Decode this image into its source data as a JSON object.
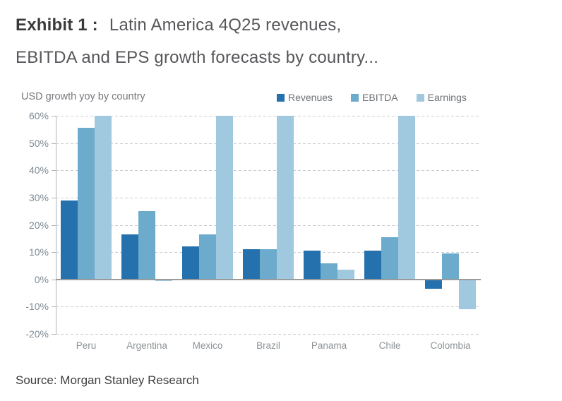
{
  "title": {
    "exhibit": "Exhibit 1 :",
    "line1": "Latin America 4Q25 revenues,",
    "line2": "EBITDA and EPS growth forecasts by country..."
  },
  "subtitle": "USD growth yoy by country",
  "source": "Source: Morgan Stanley Research",
  "chart_data": {
    "type": "bar",
    "categories": [
      "Peru",
      "Argentina",
      "Mexico",
      "Brazil",
      "Panama",
      "Chile",
      "Colombia"
    ],
    "series": [
      {
        "name": "Revenues",
        "color": "#2471ad",
        "values": [
          29,
          16.5,
          12,
          11,
          10.5,
          10.5,
          -3.5
        ]
      },
      {
        "name": "EBITDA",
        "color": "#6dabcd",
        "values": [
          55.5,
          25,
          16.5,
          11,
          6,
          15.5,
          9.5
        ]
      },
      {
        "name": "Earnings",
        "color": "#a0c8de",
        "values": [
          60,
          -0.5,
          60,
          60,
          3.5,
          60,
          -11
        ],
        "clipped_at_max": [
          true,
          false,
          true,
          true,
          false,
          true,
          false
        ]
      }
    ],
    "ylim": [
      -20,
      60
    ],
    "ytick_values": [
      60,
      50,
      40,
      30,
      20,
      10,
      0,
      -10,
      -20
    ],
    "ytick_labels": [
      "60%",
      "50%",
      "40%",
      "30%",
      "20%",
      "10%",
      "0%",
      "-10%",
      "-20%"
    ],
    "grid": "horizontal dashed",
    "legend_position": "top-right",
    "note": "Earnings bars at the axis maximum are clipped at 60%"
  }
}
